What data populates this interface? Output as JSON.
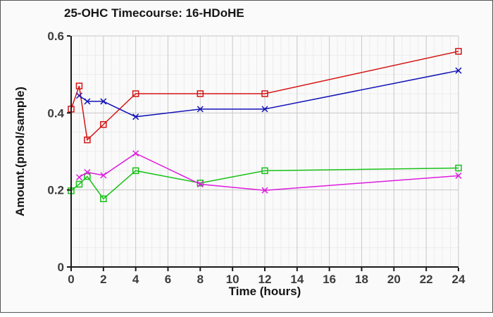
{
  "chart_data": {
    "type": "line",
    "title": "25-OHC Timecourse: 16-HDoHE",
    "xlabel": "Time (hours)",
    "ylabel": "Amount.(pmol/sample)",
    "xlim": [
      0,
      24
    ],
    "ylim": [
      0,
      0.6
    ],
    "xticks": [
      0,
      2,
      4,
      6,
      8,
      10,
      12,
      14,
      16,
      18,
      20,
      22,
      24
    ],
    "xtick_labels": [
      "0",
      "2",
      "4",
      "6",
      "8",
      "10",
      "12",
      "14",
      "16",
      "18",
      "20",
      "22",
      "24"
    ],
    "yticks": [
      0,
      0.2,
      0.4,
      0.6
    ],
    "ytick_labels": [
      "0",
      "0.2",
      "0.4",
      "0.6"
    ],
    "minor_x_step": 0.5,
    "minor_y_step": 0.05,
    "grid": true,
    "legend": false,
    "series": [
      {
        "name": "red-squares",
        "color": "#d51414",
        "marker": "square",
        "x": [
          0,
          0.5,
          1,
          2,
          4,
          8,
          12,
          24
        ],
        "y": [
          0.41,
          0.47,
          0.33,
          0.37,
          0.45,
          0.45,
          0.45,
          0.56
        ]
      },
      {
        "name": "blue-x",
        "color": "#1414b8",
        "marker": "x",
        "x": [
          0.5,
          1,
          2,
          4,
          8,
          12,
          24
        ],
        "y": [
          0.445,
          0.43,
          0.43,
          0.39,
          0.41,
          0.41,
          0.51
        ]
      },
      {
        "name": "green-squares",
        "color": "#17c217",
        "marker": "square",
        "x": [
          0,
          0.5,
          1,
          2,
          4,
          8,
          12,
          24
        ],
        "y": [
          0.198,
          0.215,
          0.235,
          0.177,
          0.25,
          0.218,
          0.25,
          0.257
        ]
      },
      {
        "name": "magenta-x",
        "color": "#de1cde",
        "marker": "x",
        "x": [
          0.5,
          1,
          2,
          4,
          8,
          12,
          24
        ],
        "y": [
          0.233,
          0.246,
          0.238,
          0.295,
          0.215,
          0.199,
          0.237
        ]
      }
    ],
    "colors": {
      "background": "#fafafa",
      "grid_minor": "#ececec",
      "grid_major": "#c8c8c8",
      "axis": "#1a1a1a",
      "tick_label": "#3c3c3c",
      "title": "#151515",
      "border": "#565656"
    }
  }
}
